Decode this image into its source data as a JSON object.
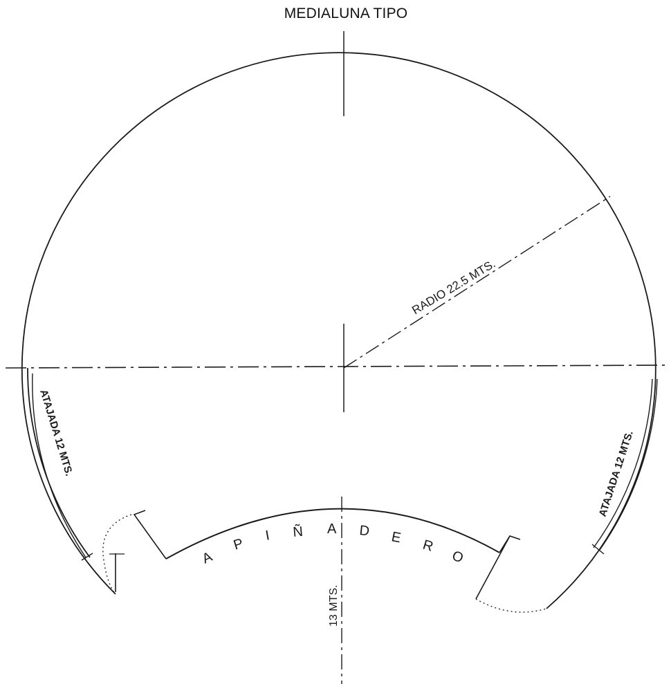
{
  "title": "MEDIALUNA TIPO",
  "labels": {
    "radius": "RADIO 22.5 MTS.",
    "atajada_left": "ATAJADA 12 MTS.",
    "atajada_right": "ATAJADA 12 MTS.",
    "apinadero_letters": [
      "A",
      "P",
      "I",
      "Ñ",
      "A",
      "D",
      "E",
      "R",
      "O"
    ],
    "depth": "13 MTS."
  },
  "colors": {
    "line": "#1a1a1a",
    "background": "#ffffff"
  }
}
